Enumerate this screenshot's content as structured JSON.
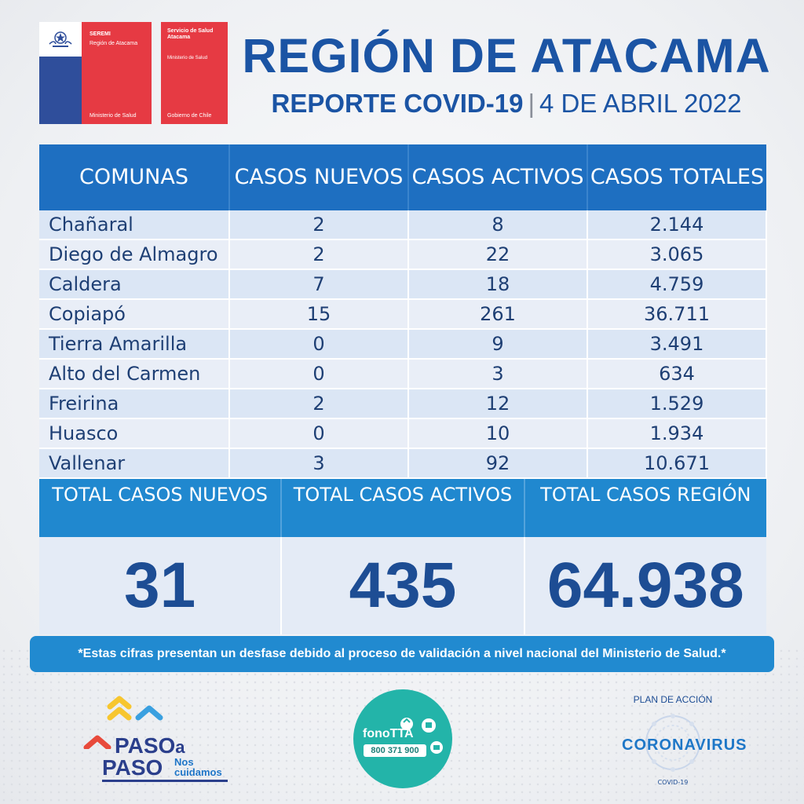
{
  "logos": {
    "seremi": {
      "title": "SEREMI",
      "subtitle": "Región de Atacama",
      "footer": "Ministerio de Salud"
    },
    "servicio": {
      "title": "Servicio de Salud Atacama",
      "subtitle": "Ministerio de Salud",
      "footer": "Gobierno de Chile"
    }
  },
  "header": {
    "title": "REGIÓN DE ATACAMA",
    "report": "REPORTE COVID-19",
    "separator": "|",
    "date": "4 DE ABRIL 2022"
  },
  "table": {
    "headers": [
      "COMUNAS",
      "CASOS NUEVOS",
      "CASOS ACTIVOS",
      "CASOS TOTALES"
    ],
    "rows": [
      {
        "comuna": "Chañaral",
        "nuevos": "2",
        "activos": "8",
        "totales": "2.144"
      },
      {
        "comuna": "Diego de Almagro",
        "nuevos": "2",
        "activos": "22",
        "totales": "3.065"
      },
      {
        "comuna": "Caldera",
        "nuevos": "7",
        "activos": "18",
        "totales": "4.759"
      },
      {
        "comuna": "Copiapó",
        "nuevos": "15",
        "activos": "261",
        "totales": "36.711"
      },
      {
        "comuna": "Tierra Amarilla",
        "nuevos": "0",
        "activos": "9",
        "totales": "3.491"
      },
      {
        "comuna": "Alto del Carmen",
        "nuevos": "0",
        "activos": "3",
        "totales": "634"
      },
      {
        "comuna": "Freirina",
        "nuevos": "2",
        "activos": "12",
        "totales": "1.529"
      },
      {
        "comuna": "Huasco",
        "nuevos": "0",
        "activos": "10",
        "totales": "1.934"
      },
      {
        "comuna": "Vallenar",
        "nuevos": "3",
        "activos": "92",
        "totales": "10.671"
      }
    ]
  },
  "totals": {
    "nuevos_label": "TOTAL CASOS NUEVOS",
    "activos_label": "TOTAL CASOS ACTIVOS",
    "region_label": "TOTAL CASOS REGIÓN",
    "nuevos": "31",
    "activos": "435",
    "region": "64.938"
  },
  "disclaimer": "*Estas cifras presentan un desfase debido al proceso de validación a nivel nacional del Ministerio de Salud.*",
  "footer_logos": {
    "paso": {
      "line1": "PASO",
      "a": "a",
      "line2": "PASO",
      "nos": "Nos",
      "cuidamos": "cuidamos"
    },
    "fono": {
      "name": "fonoTTA",
      "number": "800 371 900"
    },
    "plan": {
      "top": "PLAN DE ACCIÓN",
      "main": "CORONAVIRUS",
      "sub": "COVID-19"
    }
  },
  "colors": {
    "brand_blue": "#1b54a4",
    "header_blue": "#1e6fc1",
    "totals_blue": "#2088cf",
    "gov_red": "#e63a43",
    "gov_blue": "#2f4e9b",
    "fono_teal": "#23b4a9"
  }
}
